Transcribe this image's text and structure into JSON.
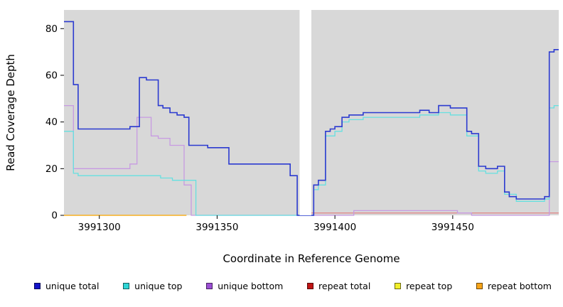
{
  "figure": {
    "background": "#ffffff"
  },
  "chart_data": {
    "type": "line",
    "step": true,
    "title": "",
    "xlabel": "Coordinate in Reference Genome",
    "ylabel": "Read Coverage Depth",
    "xlim": [
      3991285,
      3991495
    ],
    "ylim": [
      0,
      88
    ],
    "xticks": [
      3991300,
      3991350,
      3991400,
      3991450
    ],
    "yticks": [
      0,
      20,
      40,
      60,
      80
    ],
    "grid": false,
    "legend_position": "bottom",
    "plot_background": "#d8d8d8",
    "masked_region": {
      "x0": 3991385,
      "x1": 3991390,
      "color": "#ffffff"
    },
    "series": [
      {
        "name": "unique total",
        "color": "#1313c9",
        "line_color": "#2b3ad0",
        "points": [
          [
            3991285,
            83
          ],
          [
            3991289,
            56
          ],
          [
            3991291,
            37
          ],
          [
            3991313,
            38
          ],
          [
            3991317,
            59
          ],
          [
            3991320,
            58
          ],
          [
            3991325,
            47
          ],
          [
            3991327,
            46
          ],
          [
            3991330,
            44
          ],
          [
            3991333,
            43
          ],
          [
            3991336,
            42
          ],
          [
            3991338,
            30
          ],
          [
            3991346,
            29
          ],
          [
            3991355,
            22
          ],
          [
            3991381,
            17
          ],
          [
            3991384,
            0
          ],
          [
            3991391,
            13
          ],
          [
            3991393,
            15
          ],
          [
            3991396,
            36
          ],
          [
            3991398,
            37
          ],
          [
            3991400,
            38
          ],
          [
            3991403,
            42
          ],
          [
            3991406,
            43
          ],
          [
            3991412,
            44
          ],
          [
            3991436,
            45
          ],
          [
            3991440,
            44
          ],
          [
            3991444,
            47
          ],
          [
            3991449,
            46
          ],
          [
            3991456,
            36
          ],
          [
            3991458,
            35
          ],
          [
            3991461,
            21
          ],
          [
            3991464,
            20
          ],
          [
            3991469,
            21
          ],
          [
            3991472,
            10
          ],
          [
            3991474,
            8
          ],
          [
            3991477,
            7
          ],
          [
            3991489,
            8
          ],
          [
            3991491,
            70
          ],
          [
            3991493,
            71
          ]
        ]
      },
      {
        "name": "unique top",
        "color": "#2fd6d6",
        "line_color": "#66e0e0",
        "points": [
          [
            3991285,
            36
          ],
          [
            3991289,
            18
          ],
          [
            3991291,
            17
          ],
          [
            3991326,
            16
          ],
          [
            3991331,
            15
          ],
          [
            3991341,
            0
          ],
          [
            3991391,
            11
          ],
          [
            3991393,
            13
          ],
          [
            3991396,
            34
          ],
          [
            3991400,
            36
          ],
          [
            3991403,
            40
          ],
          [
            3991406,
            41
          ],
          [
            3991412,
            42
          ],
          [
            3991436,
            43
          ],
          [
            3991444,
            44
          ],
          [
            3991449,
            43
          ],
          [
            3991456,
            34
          ],
          [
            3991461,
            19
          ],
          [
            3991464,
            18
          ],
          [
            3991469,
            19
          ],
          [
            3991472,
            9
          ],
          [
            3991477,
            6
          ],
          [
            3991489,
            7
          ],
          [
            3991491,
            46
          ],
          [
            3991493,
            47
          ]
        ]
      },
      {
        "name": "unique bottom",
        "color": "#9c4fd4",
        "line_color": "#c79ae2",
        "points": [
          [
            3991285,
            47
          ],
          [
            3991289,
            20
          ],
          [
            3991313,
            22
          ],
          [
            3991316,
            42
          ],
          [
            3991322,
            34
          ],
          [
            3991325,
            33
          ],
          [
            3991330,
            30
          ],
          [
            3991336,
            13
          ],
          [
            3991339,
            0
          ],
          [
            3991408,
            2
          ],
          [
            3991452,
            1
          ],
          [
            3991458,
            0
          ],
          [
            3991491,
            23
          ]
        ]
      },
      {
        "name": "repeat total",
        "color": "#c01414",
        "line_color": "#e08a8a",
        "points": [
          [
            3991390,
            1
          ]
        ]
      },
      {
        "name": "repeat top",
        "color": "#f2ef2a",
        "line_color": "#f2ef2a",
        "points": [
          [
            3991285,
            0
          ],
          [
            3991337,
            null
          ]
        ]
      },
      {
        "name": "repeat bottom",
        "color": "#f7a418",
        "line_color": "#f7a418",
        "points": [
          [
            3991285,
            0
          ],
          [
            3991337,
            null
          ]
        ]
      }
    ]
  }
}
